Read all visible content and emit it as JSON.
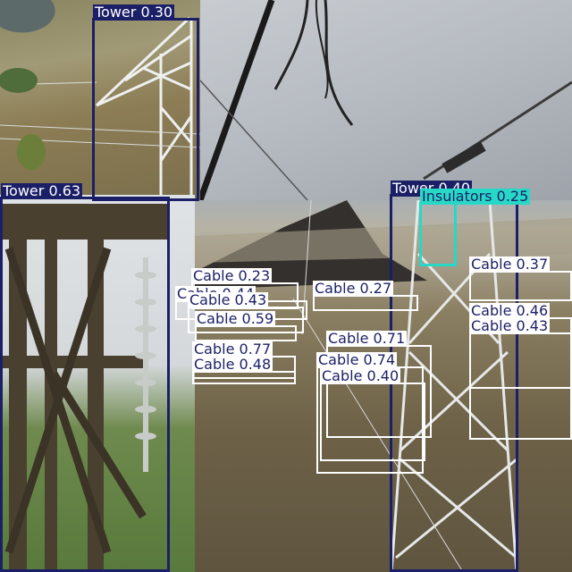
{
  "image": {
    "description_tiles": [
      "hillside-tower-top",
      "sky-cable",
      "close-tower-insulator",
      "mountain-lattice-tower"
    ]
  },
  "colors": {
    "tower": "#1b1f66",
    "cable": "#ffffff",
    "insulators": "#27d8c7"
  },
  "detections": [
    {
      "label": "Tower 0.30"
    },
    {
      "label": "Tower 0.63"
    },
    {
      "label": "Tower 0.40"
    },
    {
      "label": "Insulators 0.25"
    },
    {
      "label": "Cable 0.37"
    },
    {
      "label": "Cable 0.46"
    },
    {
      "label": "Cable 0.43"
    },
    {
      "label": "Cable 0.23"
    },
    {
      "label": "Cable 0.44"
    },
    {
      "label": "Cable 0.43"
    },
    {
      "label": "Cable 0.59"
    },
    {
      "label": "Cable 0.27"
    },
    {
      "label": "Cable 0.77"
    },
    {
      "label": "Cable 0.48"
    },
    {
      "label": "Cable 0.71"
    },
    {
      "label": "Cable 0.74"
    },
    {
      "label": "Cable 0.40"
    }
  ]
}
